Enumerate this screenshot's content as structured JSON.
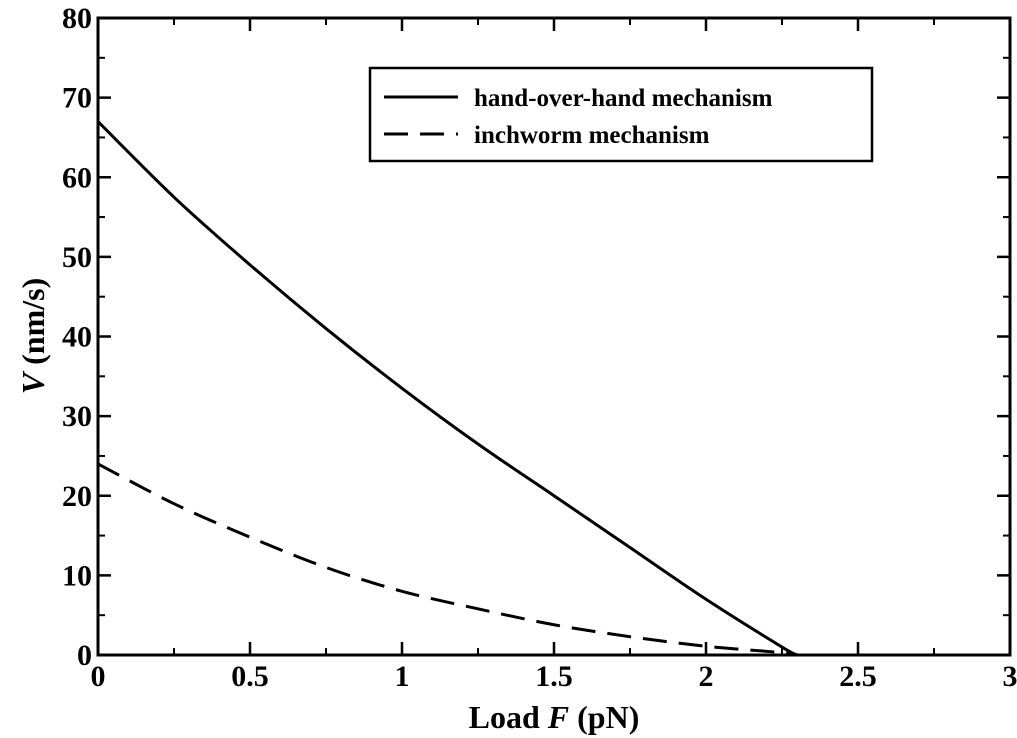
{
  "chart_data": {
    "type": "line",
    "xlabel_prefix": "Load ",
    "xlabel_var": "F",
    "xlabel_unit": " (pN)",
    "ylabel_var": "V",
    "ylabel_unit": " (nm/s)",
    "xlim": [
      0,
      3
    ],
    "ylim": [
      0,
      80
    ],
    "xticks": [
      0,
      0.5,
      1,
      1.5,
      2,
      2.5,
      3
    ],
    "xtick_labels": [
      "0",
      "0.5",
      "1",
      "1.5",
      "2",
      "2.5",
      "3"
    ],
    "yticks": [
      0,
      10,
      20,
      30,
      40,
      50,
      60,
      70,
      80
    ],
    "ytick_labels": [
      "0",
      "10",
      "20",
      "30",
      "40",
      "50",
      "60",
      "70",
      "80"
    ],
    "grid": false,
    "legend_position": "top-right",
    "series": [
      {
        "name": "hand-over-hand mechanism",
        "style": "solid",
        "color": "#000000",
        "x": [
          0,
          0.25,
          0.5,
          0.75,
          1.0,
          1.25,
          1.5,
          1.75,
          2.0,
          2.25,
          2.3
        ],
        "y": [
          67,
          57.5,
          49,
          41,
          33.5,
          26.5,
          20,
          13.5,
          7,
          1,
          0
        ]
      },
      {
        "name": "inchworm mechanism",
        "style": "dashed",
        "color": "#000000",
        "x": [
          0,
          0.25,
          0.5,
          0.75,
          1.0,
          1.25,
          1.5,
          1.75,
          2.0,
          2.25,
          2.3
        ],
        "y": [
          24,
          19,
          14.8,
          11,
          8,
          5.8,
          3.8,
          2.3,
          1.1,
          0.3,
          0
        ]
      }
    ]
  }
}
